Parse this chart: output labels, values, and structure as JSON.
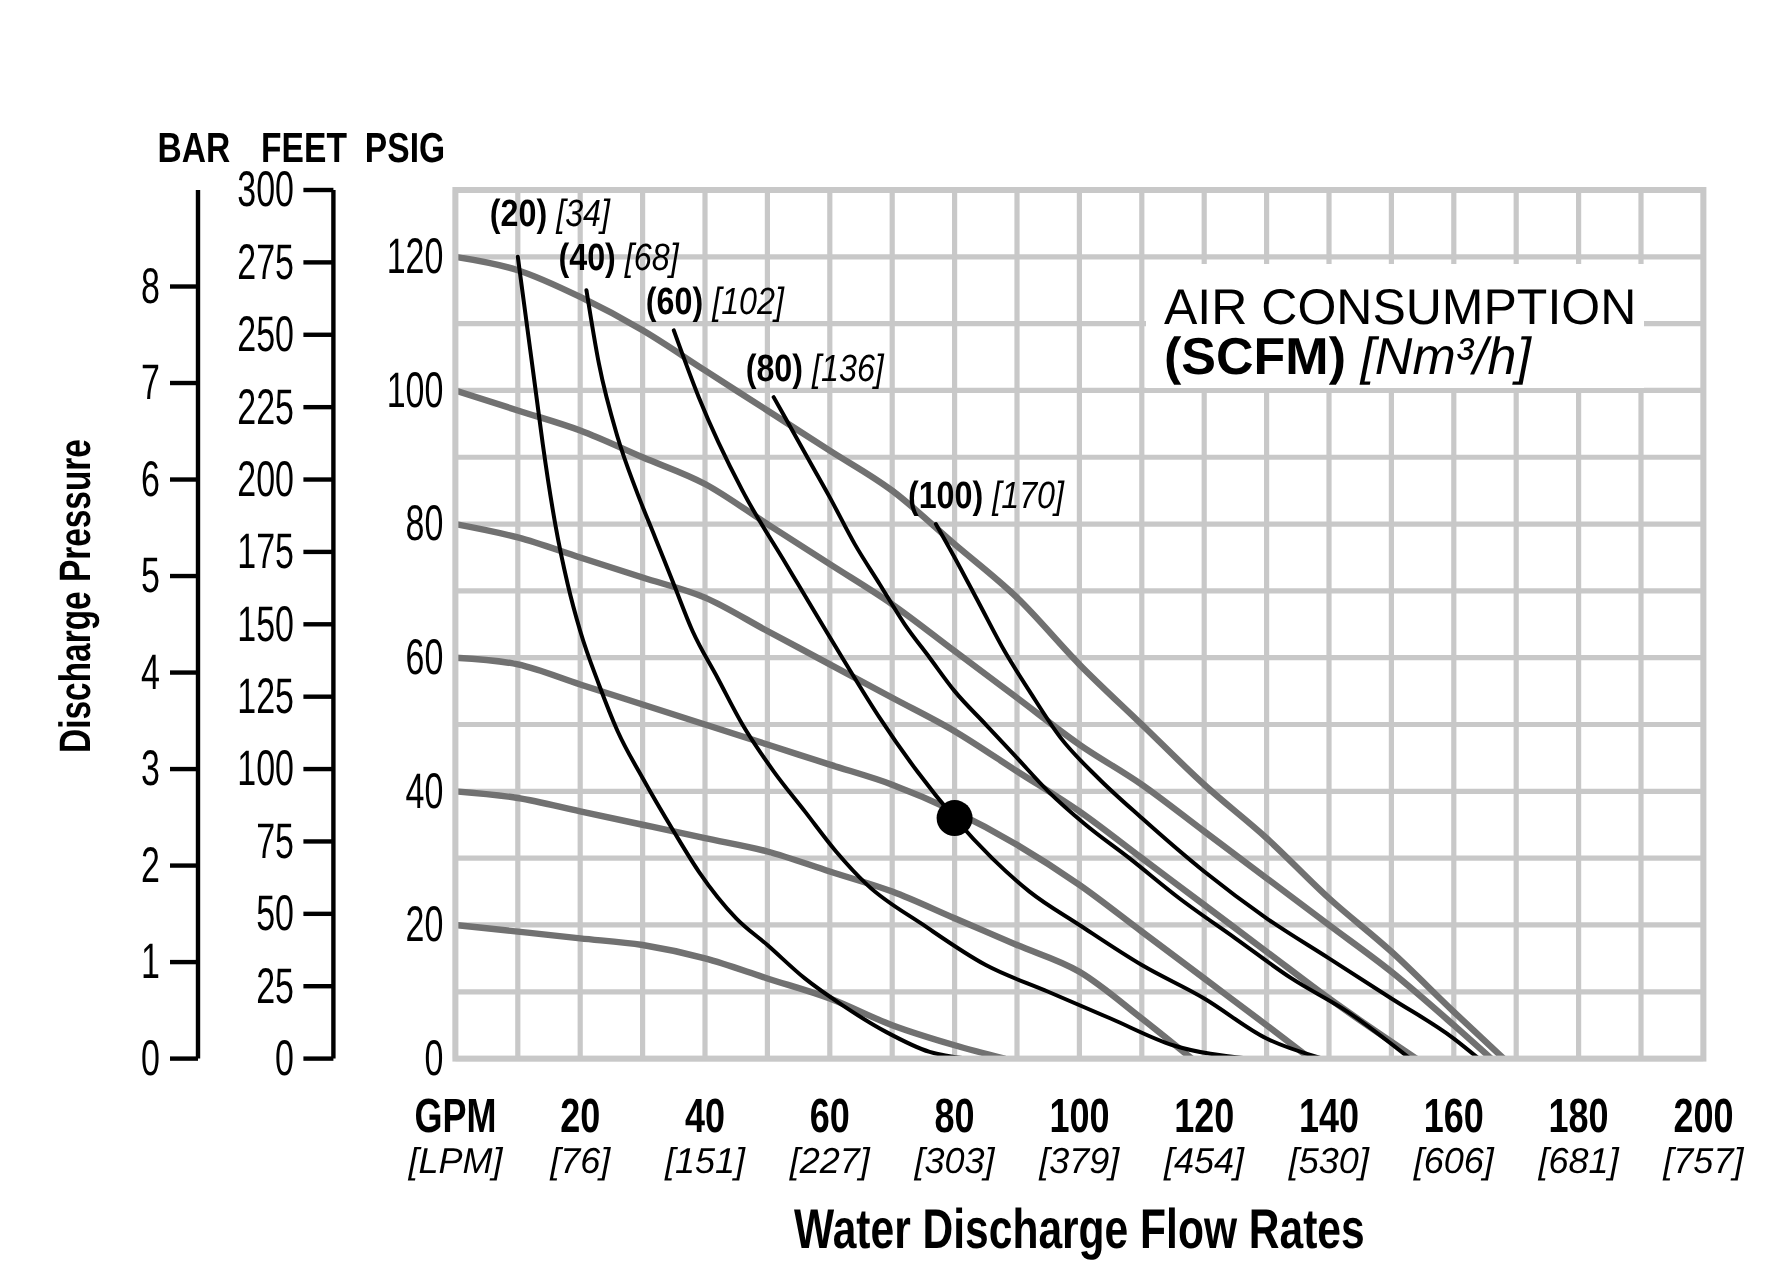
{
  "chart_data": {
    "type": "line",
    "xlabel": "Water Discharge Flow Rates",
    "ylabel": "PSIG",
    "y2label": "FEET",
    "y3label": "BAR",
    "annotations": [
      "Discharge Pressure",
      "AIR CONSUMPTION\n(SCFM) [Nm³/h]"
    ],
    "xlim": [
      0,
      200
    ],
    "xticks": [
      {
        "value": 0,
        "label": "GPM"
      },
      {
        "value": 10,
        "label": null
      },
      20,
      {
        "value": 30,
        "label": null
      },
      40,
      {
        "value": 50,
        "label": null
      },
      60,
      {
        "value": 70,
        "label": null
      },
      80,
      {
        "value": 90,
        "label": null
      },
      100,
      {
        "value": 110,
        "label": null
      },
      120,
      {
        "value": 130,
        "label": null
      },
      140,
      {
        "value": 150,
        "label": null
      },
      160,
      {
        "value": 170,
        "label": null
      },
      180,
      {
        "value": 190,
        "label": null
      },
      200
    ],
    "x2lim": [
      0,
      757.1
    ],
    "x2ticks": [
      {
        "value": 0,
        "label": "[LPM]"
      },
      {
        "value": 75.7,
        "label": "[76]"
      },
      {
        "value": 151.4,
        "label": "[151]"
      },
      {
        "value": 227.1,
        "label": "[227]"
      },
      {
        "value": 302.8,
        "label": "[303]"
      },
      {
        "value": 378.5,
        "label": "[379]"
      },
      {
        "value": 454.2,
        "label": "[454]"
      },
      {
        "value": 529.9,
        "label": "[530]"
      },
      {
        "value": 605.7,
        "label": "[606]"
      },
      {
        "value": 681.4,
        "label": "[681]"
      },
      {
        "value": 757.1,
        "label": "[757]"
      }
    ],
    "ylim": [
      0,
      130
    ],
    "yticks": [
      0,
      {
        "value": 10,
        "label": null
      },
      20,
      {
        "value": 30,
        "label": null
      },
      40,
      {
        "value": 50,
        "label": null
      },
      60,
      {
        "value": 70,
        "label": null
      },
      80,
      {
        "value": 90,
        "label": null
      },
      100,
      {
        "value": 110,
        "label": null
      },
      120
    ],
    "y2lim": [
      0,
      300
    ],
    "y2ticks": [
      0,
      25,
      50,
      75,
      100,
      125,
      150,
      175,
      200,
      225,
      250,
      275,
      300
    ],
    "y3lim": [
      0,
      9
    ],
    "y3ticks": [
      0,
      1,
      2,
      3,
      4,
      5,
      6,
      7,
      8
    ],
    "grid": true,
    "legend": false,
    "marker": "none",
    "series": [
      {
        "color": "#717171",
        "x": [
          0,
          10,
          20,
          30,
          40,
          50,
          60,
          70,
          80,
          90,
          100,
          110,
          120,
          130,
          140,
          150,
          160,
          168
        ],
        "values": [
          120,
          118,
          114,
          109,
          103,
          97,
          91,
          85,
          77,
          69,
          59,
          50,
          41,
          33,
          24,
          16,
          7,
          0
        ]
      },
      {
        "color": "#717171",
        "x": [
          0,
          10,
          20,
          30,
          40,
          50,
          60,
          70,
          80,
          90,
          100,
          110,
          120,
          130,
          140,
          150,
          160,
          166
        ],
        "values": [
          100,
          97,
          94,
          90,
          86,
          80,
          74,
          68,
          61,
          54,
          47,
          41,
          34,
          27,
          20,
          13,
          5,
          0
        ]
      },
      {
        "color": "#717171",
        "x": [
          0,
          10,
          20,
          30,
          40,
          50,
          60,
          70,
          80,
          90,
          100,
          110,
          120,
          130,
          140,
          154
        ],
        "values": [
          80,
          78,
          75,
          72,
          69,
          64,
          59,
          54,
          49,
          43,
          37,
          30,
          23,
          16,
          9,
          0
        ]
      },
      {
        "color": "#717171",
        "x": [
          0,
          10,
          20,
          30,
          40,
          50,
          60,
          70,
          80,
          90,
          100,
          110,
          120,
          130,
          137
        ],
        "values": [
          60,
          59,
          56,
          53,
          50,
          47,
          44,
          41,
          37,
          32,
          26,
          19,
          12,
          5,
          0
        ]
      },
      {
        "color": "#717171",
        "x": [
          0,
          10,
          20,
          30,
          40,
          50,
          60,
          70,
          80,
          90,
          100,
          110,
          118
        ],
        "values": [
          40,
          39,
          37,
          35,
          33,
          31,
          28,
          25,
          21,
          17,
          13,
          6,
          0
        ]
      },
      {
        "color": "#717171",
        "x": [
          0,
          10,
          20,
          30,
          40,
          50,
          60,
          70,
          80,
          88
        ],
        "values": [
          20,
          19,
          18,
          17,
          15,
          12,
          9,
          5,
          2,
          0
        ]
      },
      {
        "name": "(20) [34]",
        "color": "#000000",
        "x": [
          10,
          12,
          13,
          14,
          16,
          18,
          20,
          23,
          26,
          30,
          35,
          39,
          45,
          50,
          56,
          62,
          69,
          76,
          82
        ],
        "values": [
          120,
          106,
          99,
          92,
          80,
          71,
          64,
          56,
          49,
          42,
          34,
          28,
          21,
          17,
          12,
          8,
          4,
          1,
          0
        ]
      },
      {
        "name": "(40) [68]",
        "color": "#000000",
        "x": [
          21,
          23,
          26,
          29,
          32,
          35,
          38,
          42,
          46,
          51,
          56,
          61,
          66,
          75,
          85,
          95,
          105,
          115,
          127
        ],
        "values": [
          115,
          104,
          93,
          85,
          78,
          71,
          64,
          57,
          50,
          43,
          37,
          31,
          26,
          20,
          14,
          10,
          6,
          2,
          0
        ]
      },
      {
        "name": "(60) [102]",
        "color": "#000000",
        "x": [
          35,
          39,
          46,
          53,
          62,
          68,
          74,
          80,
          86,
          92,
          100,
          110,
          120,
          130,
          139
        ],
        "values": [
          109,
          99,
          85,
          74,
          60,
          51,
          43,
          36,
          30,
          25,
          20,
          14,
          9,
          3,
          0
        ]
      },
      {
        "name": "(80) [136]",
        "color": "#000000",
        "x": [
          51,
          54,
          57,
          60,
          64,
          68,
          72,
          76,
          80,
          85,
          90,
          95,
          101,
          108,
          116,
          125,
          134,
          143,
          153
        ],
        "values": [
          99,
          94,
          89,
          84,
          77,
          71,
          65,
          60,
          55,
          50,
          45,
          40,
          35,
          30,
          24,
          18,
          12,
          7,
          0
        ]
      },
      {
        "name": "(100) [170]",
        "color": "#000000",
        "x": [
          77,
          80,
          84,
          88,
          92,
          97,
          103,
          110,
          120,
          130,
          140,
          150,
          160,
          164
        ],
        "values": [
          80,
          75,
          68,
          61,
          55,
          48,
          42,
          36,
          28,
          21,
          15,
          9,
          3,
          0
        ]
      },
      {
        "type": "scatter",
        "marker": "circle",
        "color": "#000000",
        "x": [
          80
        ],
        "values": [
          36
        ]
      }
    ]
  }
}
